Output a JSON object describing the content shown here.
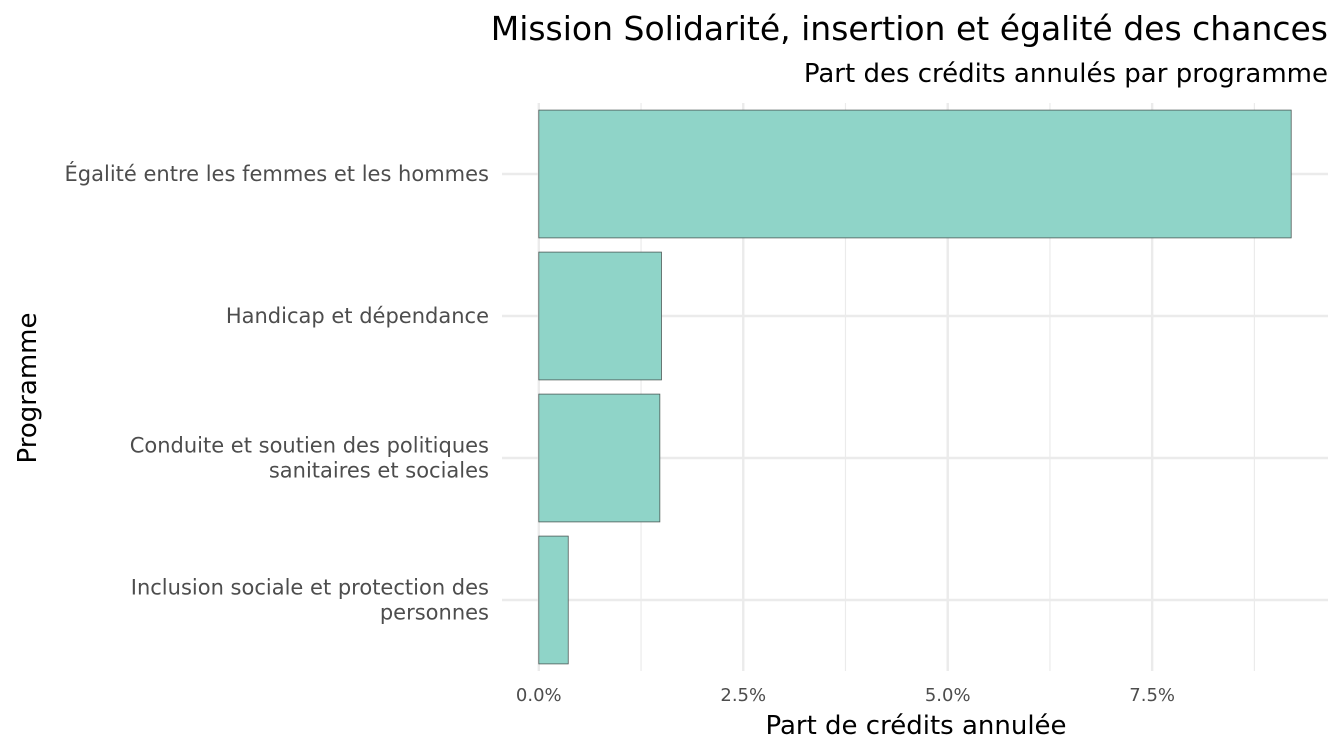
{
  "chart_data": {
    "type": "bar",
    "orientation": "horizontal",
    "title": "Mission Solidarité, insertion et égalité des chances",
    "subtitle": "Part des crédits annulés par programme",
    "xlabel": "Part de crédits annulée",
    "ylabel": "Programme",
    "categories": [
      [
        "Égalité entre les femmes et les hommes"
      ],
      [
        "Handicap et dépendance"
      ],
      [
        "Conduite et soutien des politiques",
        "sanitaires et sociales"
      ],
      [
        "Inclusion sociale et protection des",
        "personnes"
      ]
    ],
    "values": [
      9.2,
      1.5,
      1.48,
      0.36
    ],
    "xlim": [
      -0.45,
      9.65
    ],
    "xticks": [
      0,
      2.5,
      5.0,
      7.5
    ],
    "xtick_labels": [
      "0.0%",
      "2.5%",
      "5.0%",
      "7.5%"
    ],
    "grid": true,
    "bar_color": "#8fd4c8",
    "bar_outline_color": "#4d5a57"
  }
}
